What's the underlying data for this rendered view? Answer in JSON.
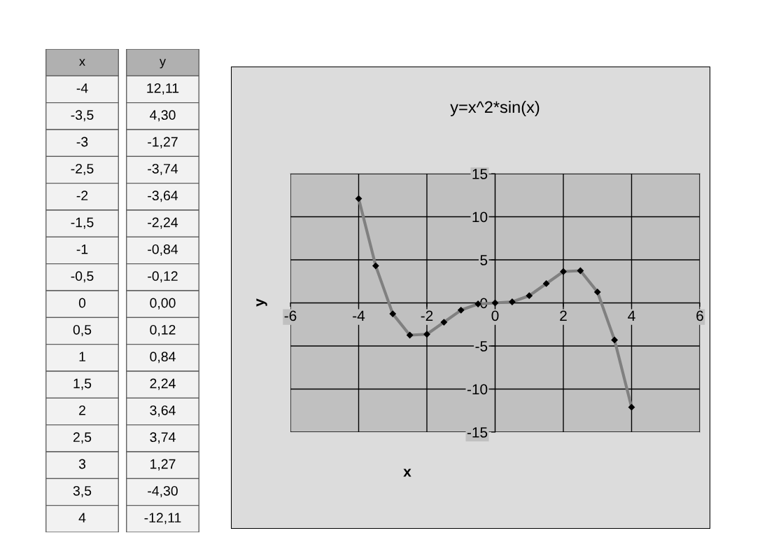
{
  "chart_data": {
    "type": "line",
    "title": "y=x^2*sin(x)",
    "xlabel": "x",
    "ylabel": "y",
    "x": [
      -4,
      -3.5,
      -3,
      -2.5,
      -2,
      -1.5,
      -1,
      -0.5,
      0,
      0.5,
      1,
      1.5,
      2,
      2.5,
      3,
      3.5,
      4
    ],
    "series": [
      {
        "color": "#808080",
        "values": [
          12.11,
          4.3,
          -1.27,
          -3.74,
          -3.64,
          -2.24,
          -0.84,
          -0.12,
          0.0,
          0.12,
          0.84,
          2.24,
          3.64,
          3.74,
          1.27,
          -4.3,
          -12.11
        ]
      }
    ],
    "annotations": [
      "x",
      "y",
      "-4",
      "-3,5",
      "-3",
      "-2,5",
      "-2",
      "-1,5",
      "-1",
      "-0,5",
      "0",
      "0,5",
      "1",
      "1,5",
      "2",
      "2,5",
      "3",
      "3,5",
      "4",
      "12,11",
      "4,30",
      "-1,27",
      "-3,74",
      "-3,64",
      "-2,24",
      "-0,84",
      "-0,12",
      "0,00",
      "0,12",
      "0,84",
      "2,24",
      "3,64",
      "3,74",
      "1,27",
      "-4,30",
      "-12,11"
    ],
    "marker": "diamond",
    "line_style": "solid",
    "grid": true,
    "xlim": [
      -6,
      6
    ],
    "xticks": [
      -6,
      -4,
      -2,
      0,
      2,
      4,
      6
    ],
    "ylim": [
      -15,
      15
    ],
    "yticks": [
      -15,
      -10,
      -5,
      0,
      5,
      10,
      15
    ]
  }
}
